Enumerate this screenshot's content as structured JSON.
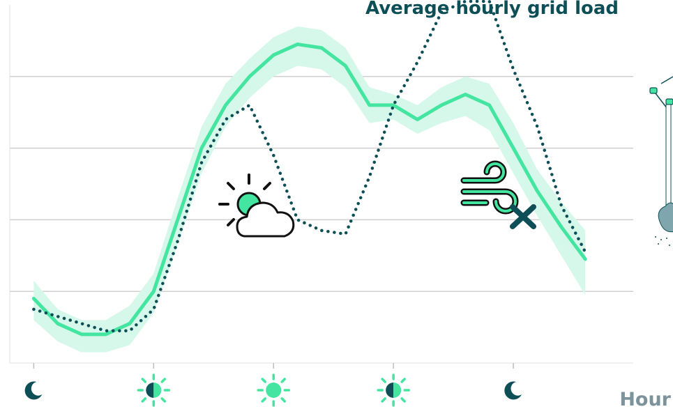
{
  "chart_data": {
    "type": "line",
    "title": "Average hourly grid load",
    "xlabel": "Hour",
    "ylabel": "",
    "x": [
      0,
      1,
      2,
      3,
      4,
      5,
      6,
      7,
      8,
      9,
      10,
      11,
      12,
      13,
      14,
      15,
      16,
      17,
      18,
      19,
      20,
      21,
      22,
      23
    ],
    "xlim": [
      -1,
      25
    ],
    "ylim": [
      0,
      5
    ],
    "grid": true,
    "series": [
      {
        "style": "solid-with-band",
        "color": "#43e5a0",
        "band_color": "#d6f8ea",
        "values": [
          0.9,
          0.55,
          0.4,
          0.4,
          0.55,
          1.0,
          2.0,
          3.0,
          3.6,
          4.0,
          4.3,
          4.45,
          4.4,
          4.15,
          3.6,
          3.6,
          3.4,
          3.6,
          3.75,
          3.6,
          3.0,
          2.4,
          1.9,
          1.45
        ],
        "band_low": [
          0.6,
          0.3,
          0.15,
          0.15,
          0.25,
          0.7,
          1.65,
          2.65,
          3.3,
          3.7,
          4.0,
          4.15,
          4.1,
          3.85,
          3.35,
          3.4,
          3.2,
          3.35,
          3.45,
          3.25,
          2.65,
          2.05,
          1.5,
          0.95
        ],
        "band_high": [
          1.15,
          0.75,
          0.6,
          0.6,
          0.8,
          1.25,
          2.3,
          3.3,
          3.9,
          4.25,
          4.55,
          4.7,
          4.65,
          4.4,
          3.85,
          3.75,
          3.6,
          3.85,
          4.0,
          3.9,
          3.35,
          2.7,
          2.25,
          1.85
        ]
      },
      {
        "style": "dotted",
        "color": "#0e4f57",
        "values": [
          0.75,
          0.65,
          0.55,
          0.45,
          0.45,
          0.75,
          1.7,
          2.8,
          3.4,
          3.6,
          2.9,
          2.0,
          1.85,
          1.8,
          2.6,
          3.6,
          4.2,
          4.9,
          5.05,
          5.05,
          4.1,
          3.3,
          2.2,
          1.55
        ]
      }
    ],
    "x_tick_icons": [
      "moon-icon",
      "half-sun-icon",
      "sun-icon",
      "half-sun-icon",
      "moon-icon"
    ],
    "x_tick_positions": [
      0,
      5,
      10,
      15,
      20
    ],
    "annotations": [
      {
        "icon": "sun-cloud-icon",
        "near_x": 9
      },
      {
        "icon": "no-wind-icon",
        "near_x": 18.5
      }
    ],
    "colors": {
      "accent": "#43e5a0",
      "band": "#d6f8ea",
      "dark": "#0e4f57",
      "grid": "#cfcfcf",
      "xlabel": "#7d939c",
      "tick": "#bdbdbd"
    }
  }
}
